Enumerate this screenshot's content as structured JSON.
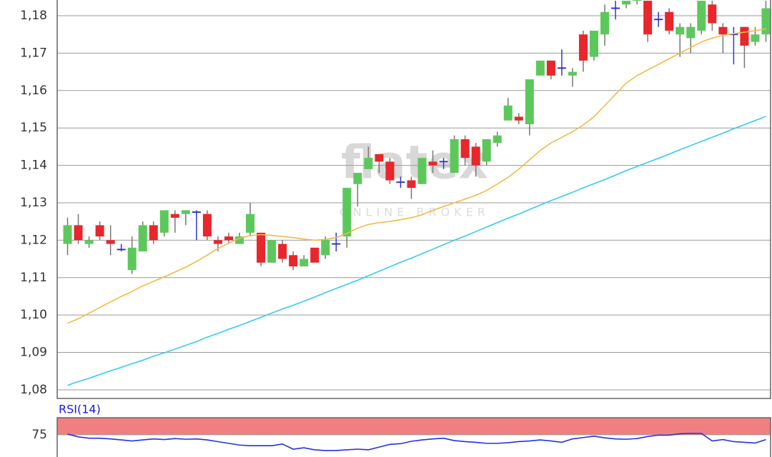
{
  "chart_data": [
    {
      "type": "candlestick",
      "watermark": [
        "flatex",
        "ONLINE BROKER"
      ],
      "ylim": [
        1.0777,
        1.1842
      ],
      "yticks": [
        {
          "value": 1.08,
          "label": "1,08"
        },
        {
          "value": 1.09,
          "label": "1,09"
        },
        {
          "value": 1.1,
          "label": "1,10"
        },
        {
          "value": 1.11,
          "label": "1,11"
        },
        {
          "value": 1.12,
          "label": "1,12"
        },
        {
          "value": 1.13,
          "label": "1,13"
        },
        {
          "value": 1.14,
          "label": "1,14"
        },
        {
          "value": 1.15,
          "label": "1,15"
        },
        {
          "value": 1.16,
          "label": "1,16"
        },
        {
          "value": 1.17,
          "label": "1,17"
        },
        {
          "value": 1.18,
          "label": "1,18"
        }
      ],
      "grid": true,
      "colors": {
        "up": "#5cc85c",
        "down": "#e8262b",
        "unchanged": "#3333cc"
      },
      "open": [
        1.119,
        1.124,
        1.119,
        1.124,
        1.12,
        1.1175,
        1.112,
        1.117,
        1.124,
        1.122,
        1.127,
        1.127,
        1.1275,
        1.127,
        1.12,
        1.121,
        1.119,
        1.122,
        1.122,
        1.114,
        1.119,
        1.116,
        1.113,
        1.118,
        1.116,
        1.119,
        1.121,
        1.135,
        1.139,
        1.143,
        1.141,
        1.1355,
        1.136,
        1.135,
        1.141,
        1.141,
        1.138,
        1.147,
        1.145,
        1.141,
        1.146,
        1.152,
        1.153,
        1.151,
        1.164,
        1.168,
        1.166,
        1.164,
        1.175,
        1.169,
        1.175,
        1.182,
        1.183,
        1.184,
        1.184,
        1.179,
        1.181,
        1.175,
        1.174,
        1.176,
        1.183,
        1.177,
        1.175,
        1.177,
        1.173,
        1.175
      ],
      "high": [
        1.126,
        1.127,
        1.121,
        1.125,
        1.124,
        1.119,
        1.121,
        1.125,
        1.125,
        1.128,
        1.128,
        1.128,
        1.128,
        1.128,
        1.121,
        1.122,
        1.122,
        1.13,
        1.122,
        1.12,
        1.12,
        1.117,
        1.116,
        1.118,
        1.121,
        1.122,
        1.134,
        1.138,
        1.145,
        1.143,
        1.142,
        1.137,
        1.137,
        1.142,
        1.144,
        1.142,
        1.148,
        1.148,
        1.146,
        1.147,
        1.149,
        1.158,
        1.154,
        1.163,
        1.168,
        1.168,
        1.171,
        1.166,
        1.176,
        1.176,
        1.183,
        1.184,
        1.184,
        1.1842,
        1.184,
        1.181,
        1.182,
        1.178,
        1.178,
        1.184,
        1.184,
        1.178,
        1.177,
        1.177,
        1.177,
        1.184
      ],
      "low": [
        1.116,
        1.119,
        1.118,
        1.12,
        1.116,
        1.117,
        1.111,
        1.117,
        1.119,
        1.121,
        1.122,
        1.124,
        1.12,
        1.12,
        1.117,
        1.119,
        1.119,
        1.121,
        1.113,
        1.114,
        1.114,
        1.112,
        1.113,
        1.114,
        1.115,
        1.117,
        1.118,
        1.129,
        1.139,
        1.138,
        1.135,
        1.134,
        1.131,
        1.135,
        1.138,
        1.139,
        1.138,
        1.14,
        1.137,
        1.14,
        1.145,
        1.152,
        1.151,
        1.148,
        1.164,
        1.163,
        1.164,
        1.161,
        1.165,
        1.168,
        1.172,
        1.179,
        1.182,
        1.183,
        1.173,
        1.177,
        1.175,
        1.169,
        1.17,
        1.175,
        1.176,
        1.17,
        1.167,
        1.166,
        1.172,
        1.173
      ],
      "close": [
        1.124,
        1.12,
        1.12,
        1.121,
        1.119,
        1.1175,
        1.118,
        1.124,
        1.12,
        1.128,
        1.126,
        1.128,
        1.1275,
        1.121,
        1.119,
        1.12,
        1.121,
        1.127,
        1.114,
        1.12,
        1.115,
        1.113,
        1.115,
        1.114,
        1.12,
        1.119,
        1.134,
        1.138,
        1.142,
        1.141,
        1.136,
        1.1355,
        1.134,
        1.142,
        1.14,
        1.141,
        1.147,
        1.142,
        1.14,
        1.147,
        1.148,
        1.156,
        1.152,
        1.163,
        1.168,
        1.164,
        1.166,
        1.165,
        1.168,
        1.176,
        1.181,
        1.182,
        1.184,
        1.1842,
        1.175,
        1.179,
        1.176,
        1.177,
        1.177,
        1.184,
        1.178,
        1.175,
        1.175,
        1.172,
        1.175,
        1.182
      ],
      "series": [
        {
          "color": "#f5b942",
          "values": [
            1.0978,
            1.099,
            1.1005,
            1.102,
            1.1035,
            1.105,
            1.1063,
            1.1078,
            1.109,
            1.1102,
            1.1115,
            1.1128,
            1.1143,
            1.116,
            1.1178,
            1.1192,
            1.1205,
            1.1212,
            1.1215,
            1.1213,
            1.121,
            1.1207,
            1.1203,
            1.12,
            1.1202,
            1.1207,
            1.1218,
            1.1232,
            1.1242,
            1.1247,
            1.125,
            1.1255,
            1.126,
            1.1268,
            1.128,
            1.129,
            1.13,
            1.131,
            1.132,
            1.1333,
            1.135,
            1.1368,
            1.139,
            1.1415,
            1.144,
            1.146,
            1.1475,
            1.149,
            1.1508,
            1.153,
            1.156,
            1.159,
            1.162,
            1.164,
            1.1655,
            1.167,
            1.1685,
            1.17,
            1.1715,
            1.173,
            1.174,
            1.1748,
            1.1752,
            1.1756,
            1.176,
            1.1765
          ]
        },
        {
          "color": "#33ccee",
          "values": [
            1.0812,
            1.0822,
            1.0831,
            1.0841,
            1.0851,
            1.086,
            1.087,
            1.0879,
            1.089,
            1.0899,
            1.0909,
            1.0919,
            1.0929,
            1.0941,
            1.0951,
            1.0962,
            1.0972,
            1.0983,
            1.0994,
            1.1005,
            1.1016,
            1.1026,
            1.1037,
            1.1048,
            1.106,
            1.1071,
            1.1082,
            1.1093,
            1.1105,
            1.1117,
            1.1129,
            1.1141,
            1.1152,
            1.1164,
            1.1176,
            1.1188,
            1.12,
            1.1211,
            1.1223,
            1.1235,
            1.1247,
            1.1259,
            1.127,
            1.1282,
            1.1294,
            1.1306,
            1.1317,
            1.1328,
            1.134,
            1.1351,
            1.1362,
            1.1374,
            1.1386,
            1.1397,
            1.1408,
            1.1419,
            1.143,
            1.1442,
            1.1453,
            1.1464,
            1.1475,
            1.1486,
            1.1498,
            1.1509,
            1.152,
            1.1531
          ]
        }
      ]
    },
    {
      "type": "line",
      "title": "RSI(14)",
      "ylim": [
        68.5,
        80
      ],
      "yticks": [
        75
      ],
      "band": [
        75,
        80
      ],
      "band_color": "#f08080",
      "color": "#2233dd",
      "values": [
        75.2,
        74.4,
        74.0,
        74.0,
        73.8,
        73.5,
        73.2,
        73.5,
        73.8,
        73.6,
        73.9,
        73.7,
        73.8,
        73.5,
        73.0,
        72.5,
        72.0,
        71.8,
        71.8,
        71.8,
        72.3,
        70.8,
        71.2,
        70.6,
        70.4,
        70.4,
        70.6,
        70.8,
        70.6,
        71.4,
        72.2,
        72.4,
        73.1,
        73.5,
        73.8,
        74.0,
        73.3,
        73.0,
        72.8,
        72.5,
        72.5,
        72.7,
        73.0,
        73.2,
        73.5,
        73.2,
        72.8,
        73.8,
        74.2,
        74.6,
        74.1,
        73.8,
        73.7,
        73.9,
        74.5,
        74.9,
        74.9,
        75.3,
        75.4,
        75.4,
        73.2,
        73.6,
        73.0,
        72.8,
        72.6,
        73.6
      ]
    }
  ]
}
